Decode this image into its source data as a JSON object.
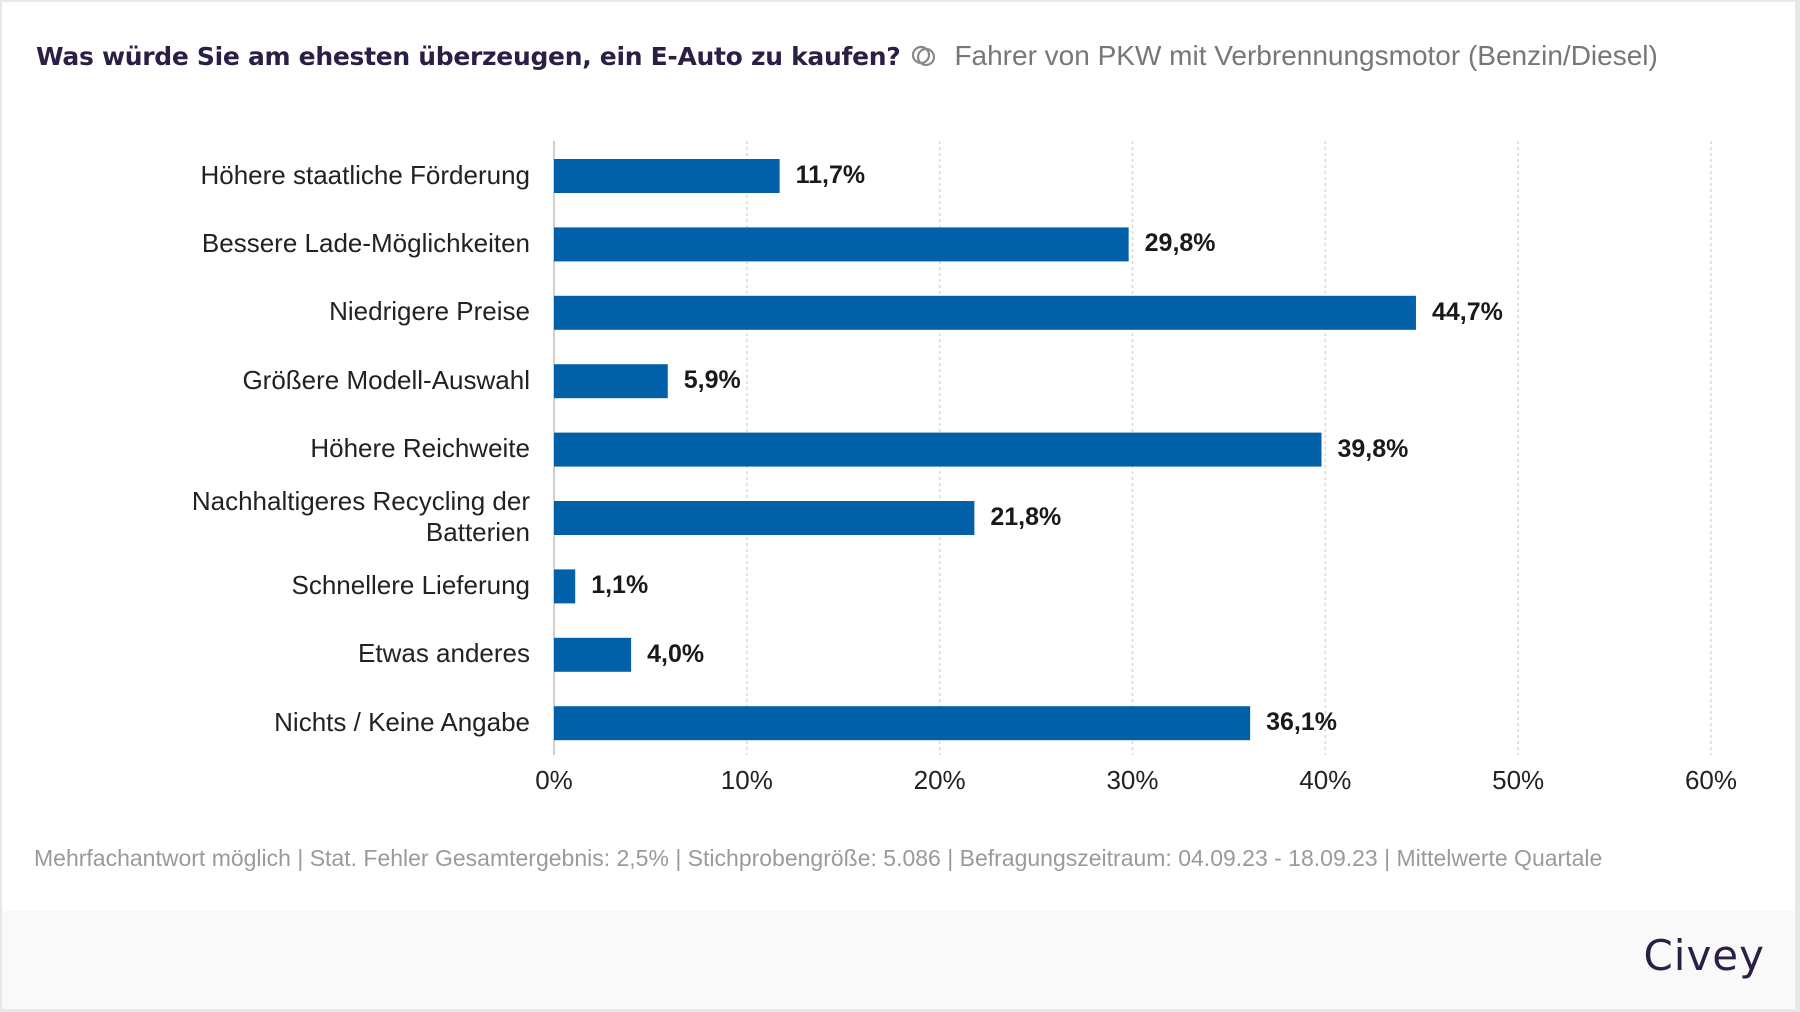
{
  "header": {
    "title": "Was würde Sie am ehesten überzeugen, ein E-Auto zu kaufen?",
    "group_icon": "group-filter-icon",
    "subtitle": "Fahrer von PKW mit Verbrennungsmotor (Benzin/Diesel)"
  },
  "colors": {
    "bar": "#0260a8",
    "title": "#2c1f45",
    "grid": "#d9d9d9"
  },
  "chart_data": {
    "type": "bar",
    "orientation": "horizontal",
    "title": "Was würde Sie am ehesten überzeugen, ein E-Auto zu kaufen?",
    "subtitle": "Fahrer von PKW mit Verbrennungsmotor (Benzin/Diesel)",
    "xlabel": "",
    "ylabel": "",
    "categories": [
      "Höhere staatliche Förderung",
      "Bessere Lade-Möglichkeiten",
      "Niedrigere Preise",
      "Größere Modell-Auswahl",
      "Höhere Reichweite",
      "Nachhaltigeres Recycling der Batterien",
      "Schnellere Lieferung",
      "Etwas anderes",
      "Nichts / Keine Angabe"
    ],
    "category_lines": [
      [
        "Höhere staatliche Förderung"
      ],
      [
        "Bessere Lade-Möglichkeiten"
      ],
      [
        "Niedrigere Preise"
      ],
      [
        "Größere Modell-Auswahl"
      ],
      [
        "Höhere Reichweite"
      ],
      [
        "Nachhaltigeres Recycling der",
        "Batterien"
      ],
      [
        "Schnellere Lieferung"
      ],
      [
        "Etwas anderes"
      ],
      [
        "Nichts / Keine Angabe"
      ]
    ],
    "values": [
      11.7,
      29.8,
      44.7,
      5.9,
      39.8,
      21.8,
      1.1,
      4.0,
      36.1
    ],
    "value_labels": [
      "11,7%",
      "29,8%",
      "44,7%",
      "5,9%",
      "39,8%",
      "21,8%",
      "1,1%",
      "4,0%",
      "36,1%"
    ],
    "xlim": [
      0,
      60
    ],
    "xticks": [
      0,
      10,
      20,
      30,
      40,
      50,
      60
    ],
    "xtick_labels": [
      "0%",
      "10%",
      "20%",
      "30%",
      "40%",
      "50%",
      "60%"
    ],
    "grid": "vertical dotted",
    "legend": "none"
  },
  "footer": {
    "note": "Mehrfachantwort möglich | Stat. Fehler Gesamtergebnis: 2,5% | Stichprobengröße: 5.086 | Befragungszeitraum: 04.09.23 - 18.09.23 | Mittelwerte Quartale",
    "brand": "Civey"
  }
}
